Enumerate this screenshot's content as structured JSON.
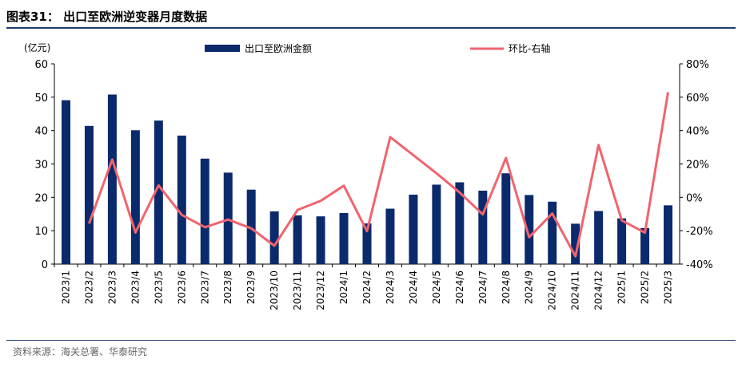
{
  "header": {
    "title": "图表31：  出口至欧洲逆变器月度数据"
  },
  "footer": {
    "source": "资料来源：海关总署、华泰研究"
  },
  "chart_data": {
    "type": "bar+line",
    "title": "",
    "ylabel_left": "(亿元)",
    "ylim_left": [
      0,
      60
    ],
    "yticks_left": [
      "0",
      "10",
      "20",
      "30",
      "40",
      "50",
      "60"
    ],
    "ylim_right": [
      -40,
      80
    ],
    "yticks_right": [
      "-40%",
      "-20%",
      "0%",
      "20%",
      "40%",
      "60%",
      "80%"
    ],
    "categories": [
      "2023/1",
      "2023/2",
      "2023/3",
      "2023/4",
      "2023/5",
      "2023/6",
      "2023/7",
      "2023/8",
      "2023/9",
      "2023/10",
      "2023/11",
      "2023/12",
      "2024/1",
      "2024/2",
      "2024/3",
      "2024/4",
      "2024/5",
      "2024/6",
      "2024/7",
      "2024/8",
      "2024/9",
      "2024/10",
      "2024/11",
      "2024/12",
      "2025/1",
      "2025/2",
      "2025/3"
    ],
    "legend_position": "top",
    "series": [
      {
        "name": "出口至欧洲金额",
        "type": "bar",
        "axis": "left",
        "color": "#0b2a6b",
        "values": [
          49.1,
          41.4,
          50.8,
          40.1,
          43.0,
          38.5,
          31.6,
          27.4,
          22.3,
          15.8,
          14.6,
          14.3,
          15.3,
          12.2,
          16.6,
          20.8,
          23.8,
          24.5,
          22.0,
          27.2,
          20.7,
          18.7,
          12.1,
          15.9,
          13.7,
          10.8,
          17.6
        ]
      },
      {
        "name": "环比-右轴",
        "type": "line",
        "axis": "right",
        "color": "#f0646e",
        "values": [
          null,
          -15.7,
          22.7,
          -21.1,
          7.2,
          -10.5,
          -17.9,
          -13.3,
          -18.6,
          -29.0,
          -7.6,
          -2.1,
          7.0,
          -20.3,
          36.1,
          25.3,
          14.4,
          2.9,
          -10.2,
          23.6,
          -23.9,
          -9.7,
          -35.3,
          31.4,
          -13.8,
          -21.2,
          63.0
        ]
      }
    ]
  }
}
